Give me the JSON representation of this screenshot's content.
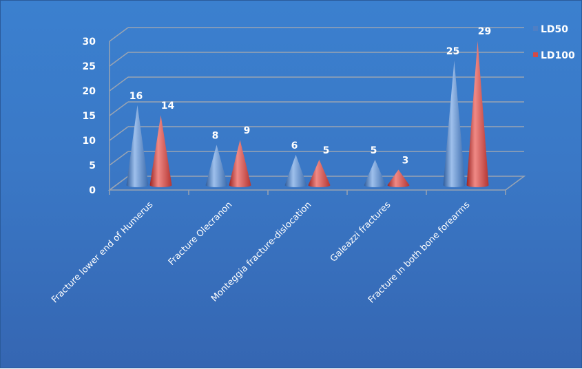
{
  "colors": {
    "LD50": "#4f7fc4",
    "LD100": "#d44a47",
    "grid": "#9aa4b2"
  },
  "chart_data": {
    "type": "bar",
    "style": "3d-cone",
    "categories": [
      "Fracture lower end of Humerus",
      "Fracture Olecranon",
      "Monteggia fracture-dislocation",
      "Galeazzi fractures",
      "Fracture in both bone forearms"
    ],
    "series": [
      {
        "name": "LD50",
        "values": [
          16,
          8,
          6,
          5,
          25
        ]
      },
      {
        "name": "LD100",
        "values": [
          14,
          9,
          5,
          3,
          29
        ]
      }
    ],
    "ylim": [
      0,
      30
    ],
    "yticks": [
      0,
      5,
      10,
      15,
      20,
      25,
      30
    ],
    "grid": true,
    "legend": "right",
    "data_labels": true
  }
}
